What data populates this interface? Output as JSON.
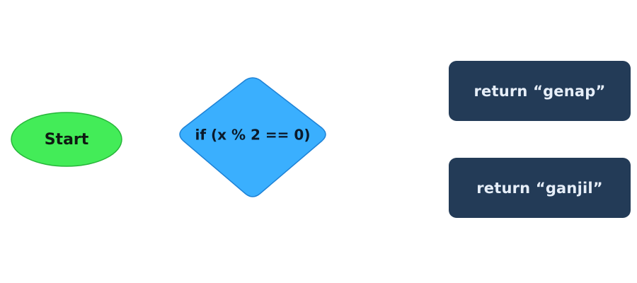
{
  "diagram": {
    "start": {
      "label": "Start",
      "fill": "#43ec58",
      "stroke": "#27b63a",
      "text_color": "#0f1a12"
    },
    "decision": {
      "label": "if (x % 2 == 0)",
      "fill": "#3aaffe",
      "stroke": "#1e82d6",
      "text_color": "#0b1a2a"
    },
    "return_true": {
      "label": "return “genap”",
      "fill": "#233b57",
      "text_color": "#e6eef8"
    },
    "return_false": {
      "label": "return “ganjil”",
      "fill": "#233b57",
      "text_color": "#e6eef8"
    }
  }
}
